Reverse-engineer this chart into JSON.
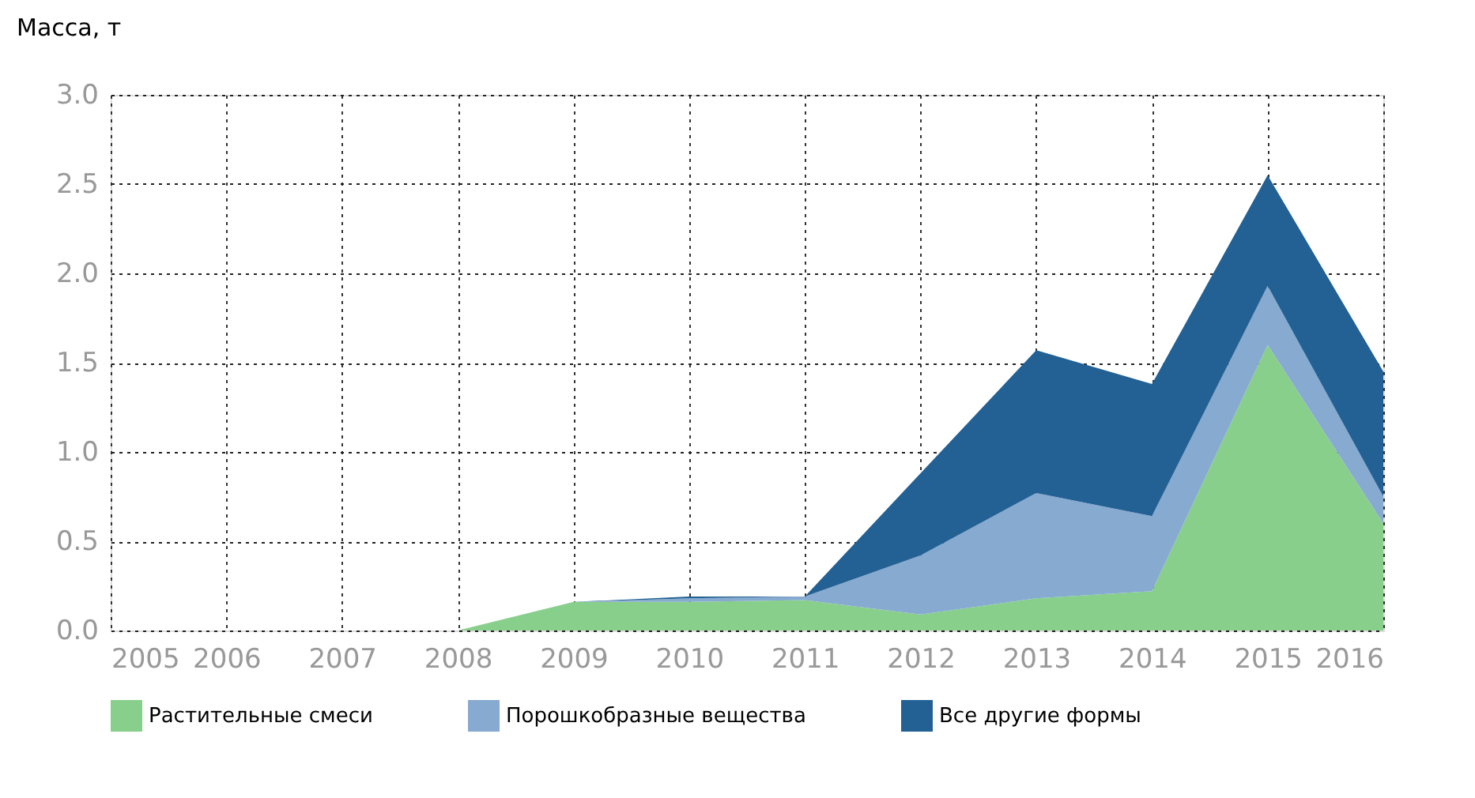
{
  "chart_data": {
    "type": "area",
    "stacked": true,
    "ylabel": "Масса, т",
    "categories": [
      "2005",
      "2006",
      "2007",
      "2008",
      "2009",
      "2010",
      "2011",
      "2012",
      "2013",
      "2014",
      "2015",
      "2016"
    ],
    "series": [
      {
        "name": "Растительные смеси",
        "color": "#88cf8c",
        "values": [
          0,
          0,
          0,
          0,
          0.16,
          0.16,
          0.17,
          0.09,
          0.18,
          0.22,
          1.6,
          0.6
        ]
      },
      {
        "name": "Порошкобразные вещества",
        "color": "#86aad0",
        "values": [
          0,
          0,
          0,
          0,
          0,
          0.02,
          0.02,
          0.33,
          0.59,
          0.42,
          0.33,
          0.15
        ]
      },
      {
        "name": "Все другие формы",
        "color": "#236093",
        "values": [
          0,
          0,
          0,
          0,
          0,
          0.01,
          0,
          0.46,
          0.8,
          0.74,
          0.62,
          0.7
        ]
      }
    ],
    "ylim": [
      0,
      3
    ],
    "yticks": [
      {
        "value": 0,
        "label": "0.0"
      },
      0.5,
      {
        "value": 1,
        "label": "1.0"
      },
      1.5,
      {
        "value": 2,
        "label": "2.0"
      },
      2.5,
      {
        "value": 3,
        "label": "3.0"
      }
    ],
    "grid": true,
    "legend": "bottom"
  }
}
